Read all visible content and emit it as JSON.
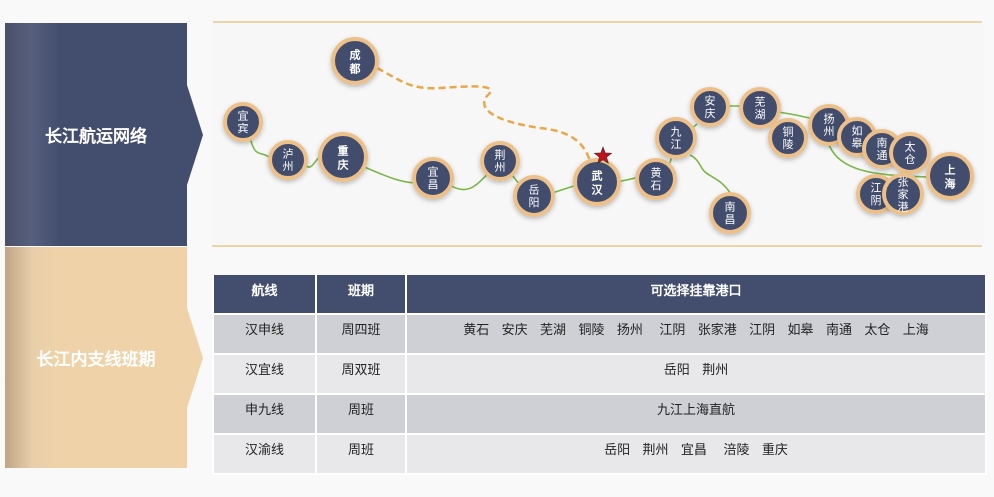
{
  "sidebar": {
    "network_label": "长江航运网络",
    "schedule_label": "长江内支线班期"
  },
  "map": {
    "hub": "武汉",
    "hub_marker": "star-icon",
    "colors": {
      "node_fill": "#434d6d",
      "node_ring": "#ecc088",
      "river": "#7ab648",
      "dashed_route": "#e8a84a",
      "star": "#c0121c"
    },
    "ports": [
      "成都",
      "宜宾",
      "泸州",
      "重庆",
      "宜昌",
      "荆州",
      "岳阳",
      "武汉",
      "黄石",
      "九江",
      "南昌",
      "安庆",
      "芜湖",
      "铜陵",
      "扬州",
      "如皋",
      "南通",
      "太仓",
      "上海",
      "江阴",
      "张家港"
    ]
  },
  "table": {
    "headers": [
      "航线",
      "班期",
      "可选择挂靠港口"
    ],
    "rows": [
      {
        "route": "汉申线",
        "schedule": "周四班",
        "ports": "黄石   安庆   芜湖   铜陵   扬州    江阴   张家港   江阴   如皋   南通   太仓   上海"
      },
      {
        "route": "汉宜线",
        "schedule": "周双班",
        "ports": "岳阳   荆州"
      },
      {
        "route": "申九线",
        "schedule": "周班",
        "ports": "九江上海直航"
      },
      {
        "route": "汉渝线",
        "schedule": "周班",
        "ports": "岳阳   荆州   宜昌    涪陵   重庆"
      }
    ]
  }
}
